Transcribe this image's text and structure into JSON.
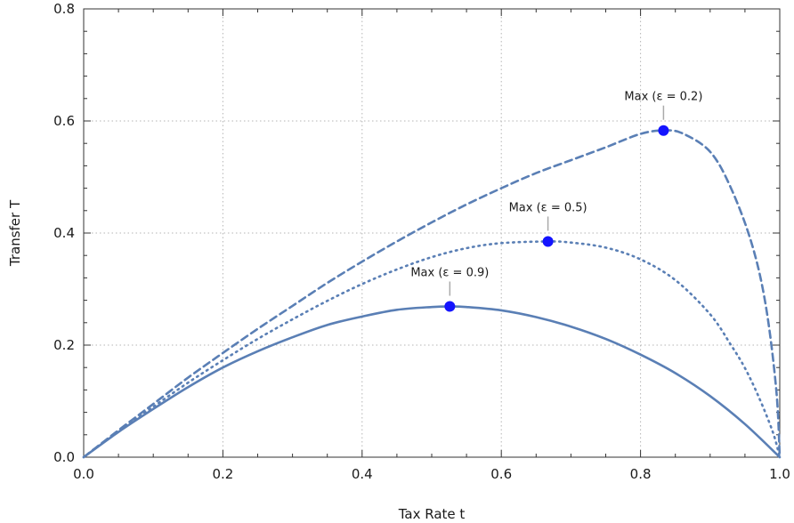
{
  "chart_data": {
    "type": "line",
    "xlabel": "Tax Rate t",
    "ylabel": "Transfer T",
    "xlim": [
      0,
      1
    ],
    "ylim": [
      0,
      0.8
    ],
    "xticks": [
      0.0,
      0.2,
      0.4,
      0.6,
      0.8,
      1.0
    ],
    "xtick_labels": [
      "0.0",
      "0.2",
      "0.4",
      "0.6",
      "0.8",
      "1.0"
    ],
    "yticks": [
      0.0,
      0.2,
      0.4,
      0.6,
      0.8
    ],
    "ytick_labels": [
      "0.0",
      "0.2",
      "0.4",
      "0.6",
      "0.8"
    ],
    "grid": true,
    "line_color": "#5a7fb5",
    "marker_color": "#1414ff",
    "series": [
      {
        "style": "solid",
        "x": [
          0.0,
          0.05,
          0.1,
          0.15,
          0.2,
          0.25,
          0.3,
          0.35,
          0.4,
          0.45,
          0.5,
          0.526,
          0.55,
          0.6,
          0.65,
          0.7,
          0.75,
          0.8,
          0.85,
          0.9,
          0.95,
          1.0
        ],
        "y": [
          0.0,
          0.045,
          0.086,
          0.125,
          0.16,
          0.189,
          0.214,
          0.236,
          0.251,
          0.263,
          0.268,
          0.269,
          0.268,
          0.262,
          0.25,
          0.233,
          0.211,
          0.183,
          0.15,
          0.109,
          0.059,
          0.0
        ]
      },
      {
        "style": "dotted",
        "x": [
          0.0,
          0.05,
          0.1,
          0.15,
          0.2,
          0.25,
          0.3,
          0.35,
          0.4,
          0.45,
          0.5,
          0.55,
          0.6,
          0.667,
          0.7,
          0.75,
          0.8,
          0.85,
          0.9,
          0.93,
          0.95,
          0.97,
          0.99,
          1.0
        ],
        "y": [
          0.0,
          0.047,
          0.09,
          0.133,
          0.173,
          0.211,
          0.246,
          0.279,
          0.309,
          0.335,
          0.357,
          0.373,
          0.382,
          0.385,
          0.383,
          0.374,
          0.353,
          0.316,
          0.255,
          0.2,
          0.159,
          0.107,
          0.045,
          0.0
        ]
      },
      {
        "style": "dashed",
        "x": [
          0.0,
          0.05,
          0.1,
          0.15,
          0.2,
          0.25,
          0.3,
          0.35,
          0.4,
          0.45,
          0.5,
          0.55,
          0.6,
          0.65,
          0.7,
          0.75,
          0.8,
          0.833,
          0.86,
          0.9,
          0.93,
          0.96,
          0.98,
          0.995,
          1.0
        ],
        "y": [
          0.0,
          0.048,
          0.095,
          0.142,
          0.186,
          0.229,
          0.27,
          0.311,
          0.349,
          0.385,
          0.419,
          0.451,
          0.48,
          0.507,
          0.53,
          0.553,
          0.577,
          0.583,
          0.578,
          0.545,
          0.48,
          0.38,
          0.27,
          0.12,
          0.0
        ]
      }
    ],
    "maxima": [
      {
        "label": "Max (ε = 0.9)",
        "x": 0.526,
        "y": 0.269
      },
      {
        "label": "Max (ε = 0.5)",
        "x": 0.667,
        "y": 0.385
      },
      {
        "label": "Max (ε = 0.2)",
        "x": 0.833,
        "y": 0.583
      }
    ]
  }
}
